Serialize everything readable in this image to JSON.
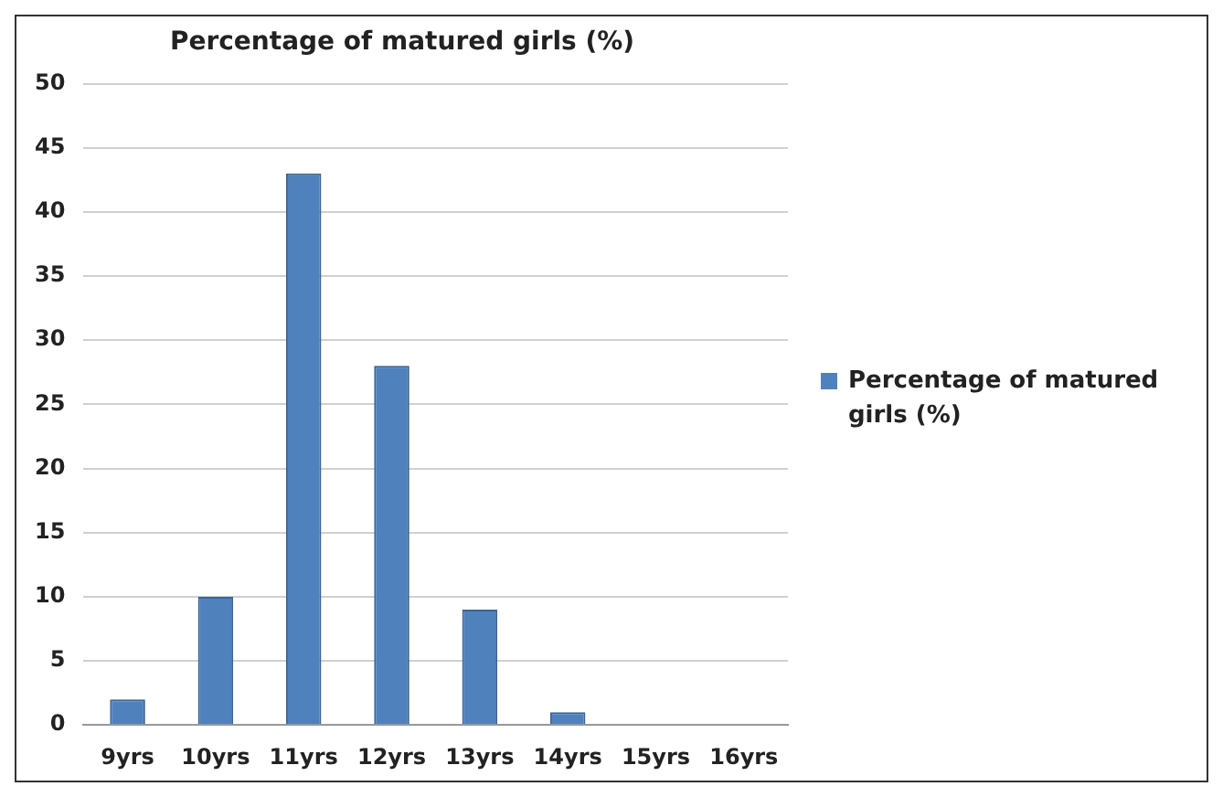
{
  "chart_data": {
    "type": "bar",
    "title": "Percentage of matured girls (%)",
    "categories": [
      "9yrs",
      "10yrs",
      "11yrs",
      "12yrs",
      "13yrs",
      "14yrs",
      "15yrs",
      "16yrs"
    ],
    "series": [
      {
        "name": "Percentage of matured girls (%)",
        "color": "#4f81bd",
        "values": [
          2,
          10,
          43,
          28,
          9,
          1,
          0,
          0
        ]
      }
    ],
    "ylim": [
      0,
      50
    ],
    "yticks": [
      0,
      5,
      10,
      15,
      20,
      25,
      30,
      35,
      40,
      45,
      50
    ],
    "grid": "y",
    "legend": "right"
  }
}
